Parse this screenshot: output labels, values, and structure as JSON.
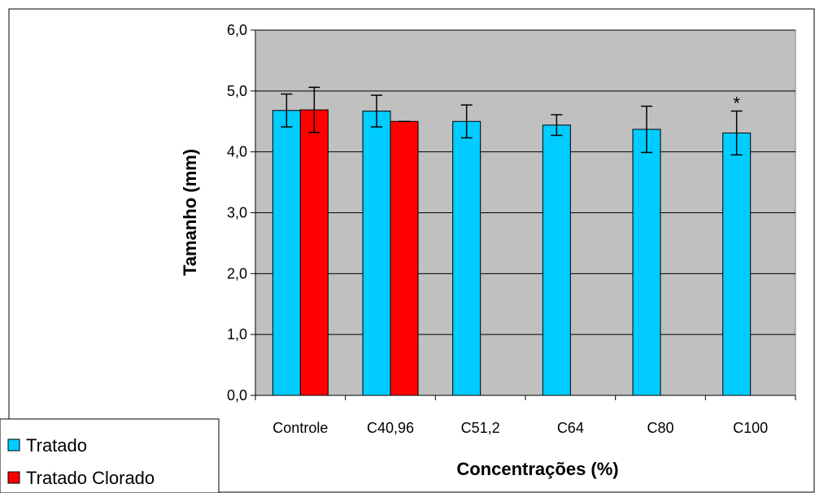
{
  "chart_data": {
    "type": "bar",
    "categories": [
      "Controle",
      "C40,96",
      "C51,2",
      "C64",
      "C80",
      "C100"
    ],
    "series": [
      {
        "name": "Tratado",
        "color": "#00ccff",
        "values": [
          4.68,
          4.67,
          4.5,
          4.44,
          4.37,
          4.31
        ],
        "errors": [
          0.27,
          0.26,
          0.27,
          0.17,
          0.38,
          0.36
        ]
      },
      {
        "name": "Tratado Clorado",
        "color": "#ff0000",
        "values": [
          4.69,
          4.5,
          null,
          null,
          null,
          null
        ],
        "errors": [
          0.37,
          0.0,
          null,
          null,
          null,
          null
        ]
      }
    ],
    "ylim": [
      0,
      6
    ],
    "yticks": [
      "0,0",
      "1,0",
      "2,0",
      "3,0",
      "4,0",
      "5,0",
      "6,0"
    ],
    "xlabel": "Concentrações (%)",
    "ylabel": "Tamanho (mm)",
    "grid": true,
    "plot_background": "#c0c0c0",
    "legend_position": "bottom-left",
    "annotations": [
      {
        "category": "C100",
        "text": "*"
      }
    ]
  }
}
